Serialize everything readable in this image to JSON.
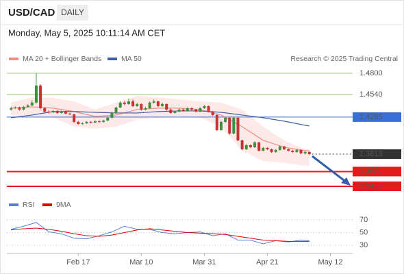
{
  "header": {
    "symbol": "USD/CAD",
    "period": "DAILY",
    "timestamp": "Monday, May 5, 2025 10:11:14 AM CET"
  },
  "chart_data": [
    {
      "type": "candlestick",
      "source": "Research © 2025 Trading Central",
      "up_color": "#3e8e3e",
      "down_color": "#c83232",
      "xlim": [
        -1,
        81.3
      ],
      "ylim": [
        1.3311,
        1.5067
      ],
      "candles": {
        "open": [
          1.4357,
          1.4374,
          1.4382,
          1.4357,
          1.439,
          1.4407,
          1.4441,
          1.465,
          1.4374,
          1.4332,
          1.4323,
          1.434,
          1.4315,
          1.4332,
          1.4307,
          1.4298,
          1.4206,
          1.4181,
          1.419,
          1.4206,
          1.4198,
          1.4215,
          1.4206,
          1.4223,
          1.4257,
          1.4315,
          1.4382,
          1.4441,
          1.4424,
          1.4457,
          1.4399,
          1.4424,
          1.4357,
          1.4374,
          1.4441,
          1.4457,
          1.4399,
          1.4424,
          1.4357,
          1.4315,
          1.4332,
          1.4357,
          1.434,
          1.4374,
          1.4357,
          1.4332,
          1.4374,
          1.4399,
          1.4332,
          1.429,
          1.4106,
          1.4206,
          1.4257,
          1.4064,
          1.4257,
          1.3981,
          1.3872,
          1.3922,
          1.3897,
          1.3956,
          1.3855,
          1.3889,
          1.3872,
          1.3839,
          1.3864,
          1.3906,
          1.3872,
          1.3855,
          1.3839,
          1.3864,
          1.3822,
          1.3839
        ],
        "high": [
          1.439,
          1.4395,
          1.4392,
          1.4402,
          1.442,
          1.447,
          1.48,
          1.4665,
          1.4385,
          1.4345,
          1.4352,
          1.435,
          1.4345,
          1.4342,
          1.4318,
          1.4305,
          1.4218,
          1.42,
          1.4215,
          1.4216,
          1.4225,
          1.4224,
          1.4232,
          1.4268,
          1.4328,
          1.4395,
          1.446,
          1.4462,
          1.449,
          1.448,
          1.444,
          1.4432,
          1.4388,
          1.4455,
          1.448,
          1.4465,
          1.444,
          1.4432,
          1.4368,
          1.4345,
          1.4368,
          1.4368,
          1.4385,
          1.4382,
          1.4365,
          1.4385,
          1.441,
          1.4405,
          1.434,
          1.4298,
          1.422,
          1.427,
          1.4262,
          1.427,
          1.4262,
          1.399,
          1.3935,
          1.3932,
          1.3968,
          1.3962,
          1.39,
          1.3898,
          1.388,
          1.3875,
          1.3918,
          1.3912,
          1.388,
          1.3862,
          1.3872,
          1.387,
          1.3848,
          1.3845
        ],
        "low": [
          1.4345,
          1.4362,
          1.4345,
          1.4347,
          1.438,
          1.4398,
          1.443,
          1.436,
          1.432,
          1.431,
          1.4312,
          1.4305,
          1.4305,
          1.4298,
          1.4288,
          1.4195,
          1.417,
          1.4172,
          1.4182,
          1.4188,
          1.419,
          1.4196,
          1.4198,
          1.4215,
          1.425,
          1.4308,
          1.4375,
          1.441,
          1.4415,
          1.4388,
          1.439,
          1.4345,
          1.4348,
          1.4365,
          1.443,
          1.4388,
          1.439,
          1.4345,
          1.4305,
          1.4305,
          1.4322,
          1.433,
          1.4332,
          1.4345,
          1.4322,
          1.4325,
          1.4365,
          1.4322,
          1.428,
          1.4095,
          1.4098,
          1.4195,
          1.405,
          1.4055,
          1.3968,
          1.386,
          1.3862,
          1.3885,
          1.3888,
          1.3845,
          1.3848,
          1.3862,
          1.3828,
          1.383,
          1.3855,
          1.3862,
          1.3845,
          1.3828,
          1.383,
          1.3812,
          1.381,
          1.38
        ],
        "close": [
          1.4374,
          1.4382,
          1.4357,
          1.439,
          1.4407,
          1.4441,
          1.465,
          1.4374,
          1.4332,
          1.4323,
          1.434,
          1.4315,
          1.4332,
          1.4307,
          1.4298,
          1.4206,
          1.4181,
          1.419,
          1.4206,
          1.4198,
          1.4215,
          1.4206,
          1.4223,
          1.4257,
          1.4315,
          1.4382,
          1.4441,
          1.4424,
          1.4457,
          1.4399,
          1.4424,
          1.4357,
          1.4374,
          1.4441,
          1.4457,
          1.4399,
          1.4424,
          1.4357,
          1.4315,
          1.4332,
          1.4357,
          1.434,
          1.4374,
          1.4357,
          1.4332,
          1.4374,
          1.4399,
          1.4332,
          1.429,
          1.4106,
          1.4206,
          1.4257,
          1.4064,
          1.4257,
          1.3981,
          1.3872,
          1.3922,
          1.3897,
          1.3956,
          1.3855,
          1.3889,
          1.3872,
          1.3839,
          1.3864,
          1.3906,
          1.3872,
          1.3855,
          1.3839,
          1.3864,
          1.3822,
          1.3839,
          1.3813
        ]
      },
      "series": [
        {
          "name": "MA 20 + Bollinger Bands",
          "color": "#f28b82",
          "band_color": "#fde3e1",
          "x": [
            0,
            5,
            10,
            15,
            20,
            25,
            30,
            35,
            40,
            45,
            50,
            55,
            60,
            65,
            70,
            71
          ],
          "values": [
            1.4374,
            1.439,
            1.4374,
            1.4332,
            1.4273,
            1.429,
            1.4357,
            1.4374,
            1.4374,
            1.4357,
            1.429,
            1.4148,
            1.3981,
            1.3897,
            1.3855,
            1.3855
          ],
          "upper": [
            1.4441,
            1.4507,
            1.4499,
            1.4457,
            1.4357,
            1.4441,
            1.4524,
            1.4507,
            1.4482,
            1.4457,
            1.4441,
            1.4357,
            1.4148,
            1.3981,
            1.3872,
            1.3872
          ],
          "lower": [
            1.429,
            1.4273,
            1.4257,
            1.4148,
            1.4123,
            1.4148,
            1.4232,
            1.4257,
            1.4273,
            1.4257,
            1.4148,
            1.3855,
            1.373,
            1.3705,
            1.3671,
            1.3671
          ]
        },
        {
          "name": "MA 50",
          "color": "#3b5fa3",
          "x": [
            0,
            5,
            10,
            15,
            20,
            25,
            30,
            35,
            40,
            45,
            50,
            55,
            60,
            65,
            70,
            71
          ],
          "values": [
            1.4257,
            1.429,
            1.4332,
            1.4332,
            1.4323,
            1.4315,
            1.4315,
            1.4332,
            1.434,
            1.434,
            1.4323,
            1.429,
            1.4257,
            1.4215,
            1.4165,
            1.4156
          ]
        }
      ],
      "levels": [
        {
          "value": 1.48,
          "label": "1.4800",
          "color": "#7dbb4a",
          "boxed": false
        },
        {
          "value": 1.454,
          "label": "1.4540",
          "color": "#7dbb4a",
          "boxed": false
        },
        {
          "value": 1.4265,
          "label": "1.4265",
          "color": "#3a6fd8",
          "boxed": true
        },
        {
          "value": 1.3813,
          "label": "1.3813",
          "color": "#333333",
          "boxed": true
        },
        {
          "value": 1.36,
          "label": "1.3600",
          "color": "#e31b1b",
          "boxed": true
        },
        {
          "value": 1.342,
          "label": "1.3420",
          "color": "#e31b1b",
          "boxed": true
        }
      ]
    },
    {
      "type": "line",
      "xlim": [
        -1,
        81.3
      ],
      "ylim": [
        19,
        82
      ],
      "yticks": [
        30,
        50,
        70
      ],
      "xticks": [
        {
          "value": 16,
          "label": "Feb 17"
        },
        {
          "value": 31,
          "label": "Mar 10"
        },
        {
          "value": 46,
          "label": "Mar 31"
        },
        {
          "value": 61,
          "label": "Apr 21"
        },
        {
          "value": 76,
          "label": "May 12"
        }
      ],
      "series": [
        {
          "name": "RSI",
          "color": "#5b7fd6",
          "x": [
            0,
            3,
            6,
            9,
            12,
            15,
            18,
            21,
            24,
            27,
            30,
            33,
            36,
            39,
            42,
            45,
            48,
            51,
            54,
            57,
            60,
            63,
            66,
            69,
            71
          ],
          "values": [
            55,
            60,
            66,
            51,
            48,
            41,
            40,
            45,
            51,
            60,
            55,
            55,
            50,
            48,
            50,
            51,
            45,
            48,
            38,
            38,
            32,
            37,
            35,
            38,
            37
          ]
        },
        {
          "name": "9MA",
          "color": "#e00000",
          "x": [
            0,
            3,
            6,
            9,
            12,
            15,
            18,
            21,
            24,
            27,
            30,
            33,
            36,
            39,
            42,
            45,
            48,
            51,
            54,
            57,
            60,
            63,
            66,
            69,
            71
          ],
          "values": [
            54,
            56,
            57,
            55,
            52,
            48,
            45,
            44,
            46,
            50,
            54,
            56,
            54,
            52,
            50,
            49,
            48,
            47,
            44,
            41,
            38,
            37,
            36,
            36,
            36
          ]
        }
      ]
    }
  ]
}
